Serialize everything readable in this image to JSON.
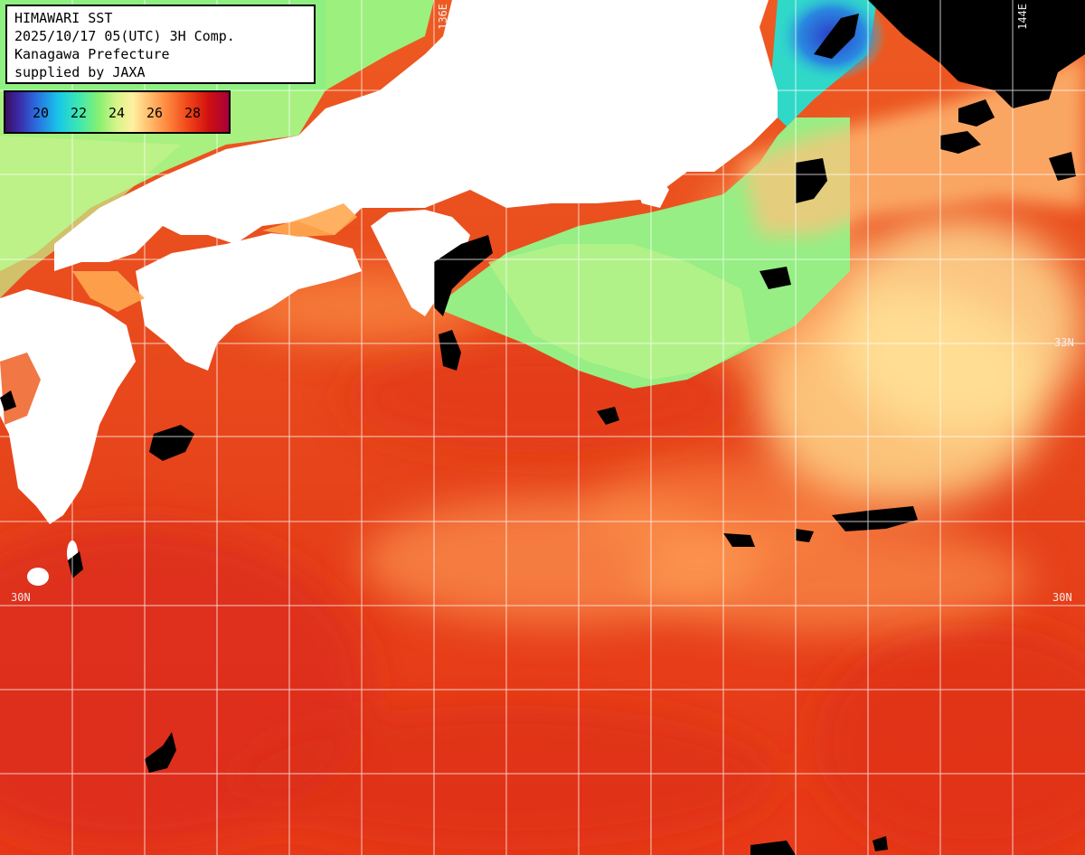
{
  "title": {
    "line1": "HIMAWARI SST",
    "line2": "2025/10/17 05(UTC) 3H Comp.",
    "line3": "Kanagawa Prefecture",
    "line4": "supplied by JAXA"
  },
  "legend": {
    "labels": [
      "20",
      "22",
      "24",
      "26",
      "28"
    ]
  },
  "grid_labels": {
    "lon_left": "136E",
    "lon_right": "144E",
    "lat_upper_right": "33N",
    "lat_lower_left": "30N",
    "lat_lower_right": "30N"
  },
  "colors": {
    "land": "#ffffff",
    "no_data": "#000000",
    "grid": "#ffffff",
    "warm_sea": "#e8461a",
    "cool_sea": "#8ef080"
  }
}
